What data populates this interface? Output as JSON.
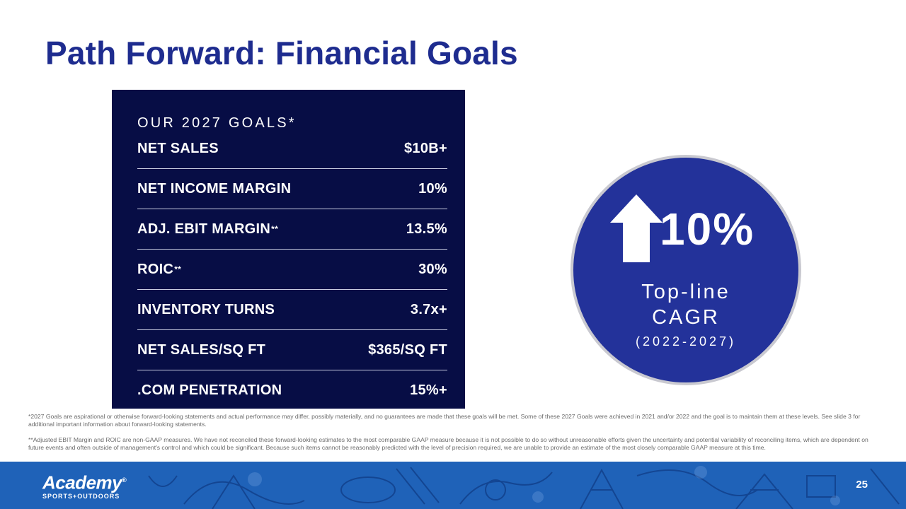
{
  "slide": {
    "title": "Path Forward: Financial Goals",
    "page_number": "25"
  },
  "goals": {
    "heading": "OUR 2027 GOALS*",
    "rows": [
      {
        "label": "NET SALES",
        "marker": "",
        "value": "$10B+"
      },
      {
        "label": "NET INCOME MARGIN",
        "marker": "",
        "value": "10%"
      },
      {
        "label": "ADJ. EBIT MARGIN",
        "marker": "**",
        "value": "13.5%"
      },
      {
        "label": "ROIC",
        "marker": "**",
        "value": "30%"
      },
      {
        "label": "INVENTORY TURNS",
        "marker": "",
        "value": "3.7x+"
      },
      {
        "label": "NET SALES/SQ FT",
        "marker": "",
        "value": "$365/SQ FT"
      },
      {
        "label": ".COM PENETRATION",
        "marker": "",
        "value": "15%+"
      }
    ]
  },
  "highlight": {
    "icon": "arrow-up-icon",
    "percent": "10%",
    "line1": "Top-line",
    "line2": "CAGR",
    "line3": "(2022-2027)"
  },
  "footnotes": {
    "goals_note": "*2027 Goals are aspirational or otherwise forward-looking statements and actual performance may differ, possibly materially, and no guarantees are made that these goals will be met.  Some of these 2027 Goals were achieved in 2021 and/or 2022 and the goal is to maintain them at these levels. See slide 3 for additional important information about forward-looking statements.",
    "non_gaap_note": "**Adjusted EBIT  Margin and ROIC are non-GAAP measures. We have not reconciled these forward-looking estimates to the most comparable GAAP measure because it is not possible to do so without unreasonable efforts given the uncertainty and potential variability of reconciling items, which are dependent on future events and often outside of management's control and which could be significant. Because such items cannot be reasonably predicted with the level of precision required, we are unable to provide an estimate of the most closely comparable GAAP measure at this time."
  },
  "brand": {
    "logo_main": "Academy",
    "logo_sub": "SPORTS+OUTDOORS",
    "logo_mark": "®"
  },
  "colors": {
    "title": "#1e2c8f",
    "panel": "#070d45",
    "circle": "#23329a",
    "footer": "#1f62b8"
  }
}
